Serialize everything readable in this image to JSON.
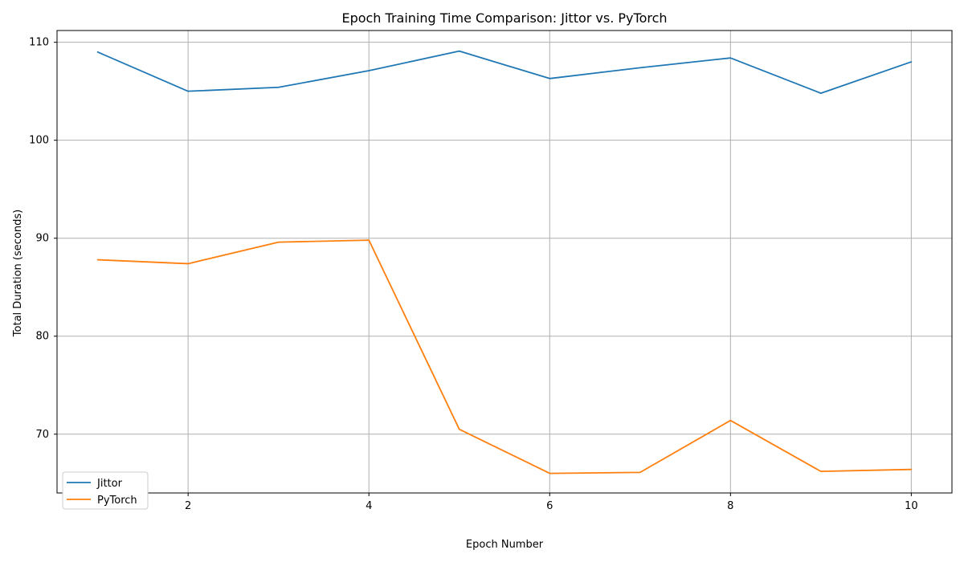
{
  "chart_data": {
    "type": "line",
    "title": "Epoch Training Time Comparison: Jittor vs. PyTorch",
    "xlabel": "Epoch Number",
    "ylabel": "Total Duration (seconds)",
    "x": [
      1,
      2,
      3,
      4,
      5,
      6,
      7,
      8,
      9,
      10
    ],
    "xlim": [
      0.55,
      10.45
    ],
    "ylim": [
      64.0,
      111.2
    ],
    "xticks": [
      2,
      4,
      6,
      8,
      10
    ],
    "xtick_labels": [
      "2",
      "4",
      "6",
      "8",
      "10"
    ],
    "yticks": [
      70,
      80,
      90,
      100,
      110
    ],
    "ytick_labels": [
      "70",
      "80",
      "90",
      "100",
      "110"
    ],
    "grid": true,
    "legend": {
      "placement": "lower-left"
    },
    "series": [
      {
        "name": "Jittor",
        "color": "#1f77b4",
        "values": [
          109.0,
          105.0,
          105.4,
          107.1,
          109.1,
          106.3,
          107.4,
          108.4,
          104.8,
          108.0
        ]
      },
      {
        "name": "PyTorch",
        "color": "#ff7f0e",
        "values": [
          87.8,
          87.4,
          89.6,
          89.8,
          70.5,
          66.0,
          66.1,
          71.4,
          66.2,
          66.4
        ]
      }
    ]
  }
}
